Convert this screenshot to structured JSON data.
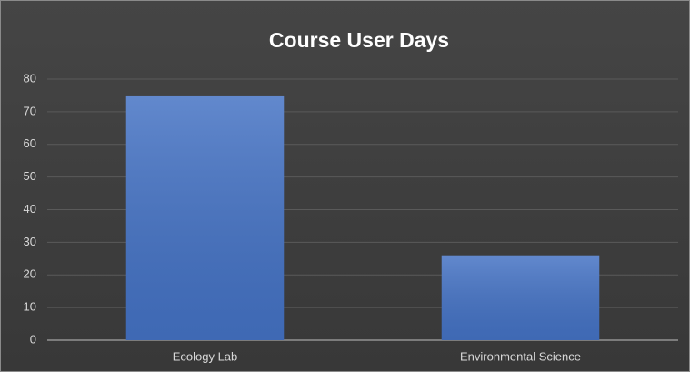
{
  "chart_data": {
    "type": "bar",
    "title": "Course User Days",
    "categories": [
      "Ecology Lab",
      "Environmental Science"
    ],
    "values": [
      75,
      26
    ],
    "color": "#4472c4",
    "ylim": [
      0,
      80
    ],
    "yticks": [
      0,
      10,
      20,
      30,
      40,
      50,
      60,
      70,
      80
    ],
    "grid": true
  }
}
